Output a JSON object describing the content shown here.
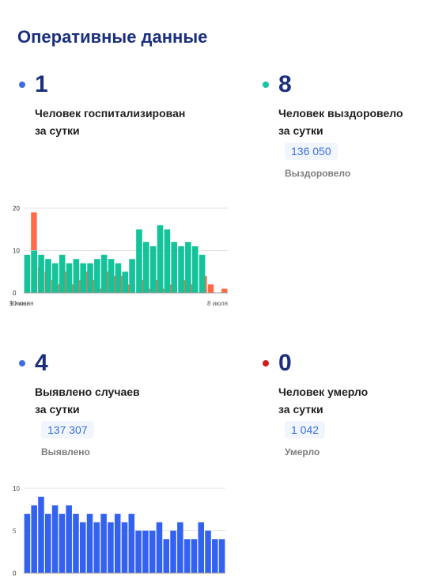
{
  "header": {
    "title": "Оперативные данные"
  },
  "colors": {
    "accent_title": "#1b2f7d",
    "hospitalized": "#ff6b47",
    "recovered": "#15c39a",
    "detected": "#3462f0",
    "deaths": "#cc1e1e"
  },
  "cards": {
    "hospitalized": {
      "number": "1",
      "desc_line1": "Человек госпитализирован",
      "desc_line2": "за сутки"
    },
    "recovered": {
      "number": "8",
      "desc_line1": "Человек выздоровело",
      "desc_line2": "за сутки",
      "total": "136 050",
      "total_label": "Выздоровело"
    },
    "detected": {
      "number": "4",
      "desc_line1": "Выявлено случаев",
      "desc_line2": "за сутки",
      "total": "137 307",
      "total_label": "Выявлено"
    },
    "deaths": {
      "number": "0",
      "desc_line1": "Человек умерло",
      "desc_line2": "за сутки",
      "total": "1 042",
      "total_label": "Умерло"
    }
  },
  "chart_data": [
    {
      "id": "hospitalized",
      "type": "bar",
      "color": "#ff6b47",
      "ylim": [
        0,
        20
      ],
      "yticks": [
        "20",
        "10",
        "0"
      ],
      "grid": true,
      "x_start_label": "9 июня",
      "x_end_label": "8 июля",
      "values": [
        3,
        19,
        6,
        5,
        3,
        2,
        5,
        2,
        3,
        5,
        3,
        1,
        5,
        4,
        4,
        2,
        0,
        3,
        1,
        3,
        1,
        2,
        0,
        3,
        2,
        0,
        4,
        2,
        0,
        1
      ]
    },
    {
      "id": "recovered",
      "type": "bar",
      "color": "#15c39a",
      "ylim": [
        0,
        20
      ],
      "yticks": [
        "20",
        "10",
        "0"
      ],
      "grid": true,
      "x_start_label": "10 июня",
      "x_end_label": "",
      "values": [
        9,
        10,
        9,
        8,
        7,
        9,
        7,
        8,
        7,
        7,
        8,
        9,
        8,
        7,
        5,
        8,
        15,
        12,
        11,
        16,
        15,
        12,
        11,
        12,
        11,
        9
      ]
    },
    {
      "id": "detected",
      "type": "bar",
      "color": "#3462f0",
      "ylim": [
        0,
        10
      ],
      "yticks": [
        "10",
        "5",
        "0"
      ],
      "grid": true,
      "x_start_label": "",
      "x_end_label": "",
      "values": [
        7,
        8,
        9,
        7,
        8,
        7,
        8,
        7,
        6,
        7,
        6,
        7,
        6,
        7,
        6,
        7,
        5,
        5,
        5,
        6,
        4,
        5,
        6,
        4,
        4,
        6,
        5,
        4,
        4
      ]
    },
    {
      "id": "deaths",
      "type": "bar",
      "color": "#cc1e1e",
      "ylim": [
        0,
        1
      ],
      "yticks": [
        "1",
        "0"
      ],
      "grid": true,
      "x_start_label": "",
      "x_end_label": "",
      "values": []
    }
  ]
}
